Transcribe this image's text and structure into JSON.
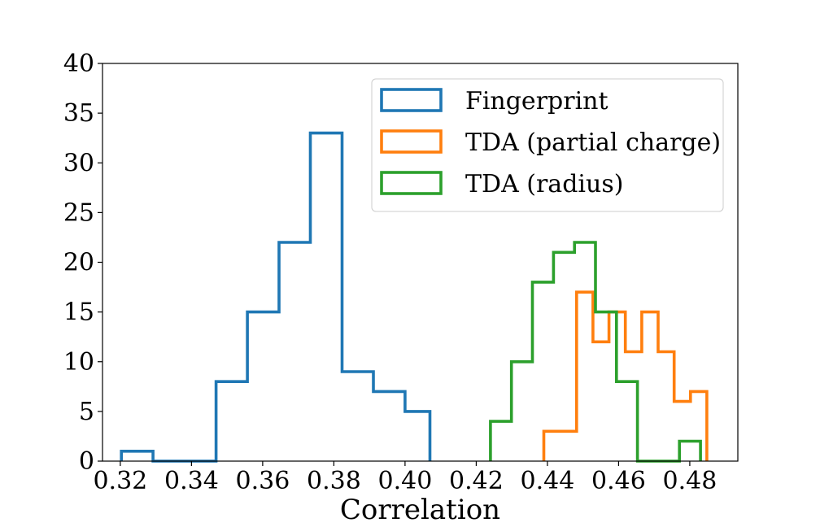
{
  "chart_data": {
    "type": "histogram",
    "title": "",
    "xlabel": "Correlation",
    "ylabel": "",
    "xlim": [
      0.315,
      0.4935
    ],
    "ylim": [
      0,
      40
    ],
    "x_ticks": [
      "0.32",
      "0.34",
      "0.36",
      "0.38",
      "0.40",
      "0.42",
      "0.44",
      "0.46",
      "0.48"
    ],
    "y_ticks": [
      "0",
      "5",
      "10",
      "15",
      "20",
      "25",
      "30",
      "35",
      "40"
    ],
    "grid": false,
    "legend_position": "top-right",
    "series": [
      {
        "name": "Fingerprint",
        "color": "#1f77b4",
        "bin_edges": [
          0.3203,
          0.3292,
          0.338,
          0.3469,
          0.3557,
          0.3646,
          0.3734,
          0.3823,
          0.3911,
          0.4,
          0.407
        ],
        "counts": [
          1,
          0,
          0,
          8,
          15,
          22,
          33,
          9,
          7,
          5
        ]
      },
      {
        "name": "TDA (partial charge)",
        "color": "#ff7f0e",
        "bin_edges": [
          0.439,
          0.4436,
          0.4482,
          0.4528,
          0.4573,
          0.4619,
          0.4665,
          0.4711,
          0.4756,
          0.4802,
          0.4848
        ],
        "counts": [
          3,
          3,
          17,
          12,
          15,
          11,
          15,
          11,
          6,
          7
        ]
      },
      {
        "name": "TDA (radius)",
        "color": "#2ca02c",
        "bin_edges": [
          0.424,
          0.4299,
          0.4358,
          0.4417,
          0.4476,
          0.4535,
          0.4594,
          0.4653,
          0.4712,
          0.4771,
          0.483
        ],
        "counts": [
          4,
          10,
          18,
          21,
          22,
          15,
          8,
          0,
          0,
          2
        ]
      }
    ]
  }
}
